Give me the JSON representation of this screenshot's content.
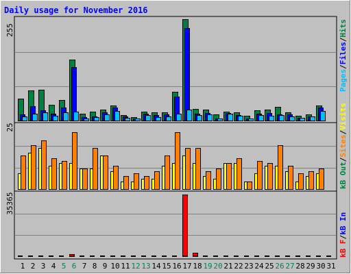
{
  "chart_data": {
    "type": "bar",
    "title": "Daily usage for November 2016",
    "categories": [
      "1",
      "2",
      "3",
      "4",
      "5",
      "6",
      "7",
      "8",
      "9",
      "10",
      "11",
      "12",
      "13",
      "14",
      "15",
      "16",
      "17",
      "18",
      "19",
      "20",
      "21",
      "22",
      "23",
      "24",
      "25",
      "26",
      "27",
      "28",
      "29",
      "30",
      "31"
    ],
    "weekend_days": [
      "5",
      "6",
      "12",
      "13",
      "19",
      "20",
      "26",
      "27"
    ],
    "grid": true,
    "panels": {
      "hits": {
        "y_max_label": "255",
        "ylim": [
          0,
          255
        ],
        "series": [
          {
            "name": "Hits",
            "color": "#008040",
            "values": [
              55,
              75,
              77,
              40,
              52,
              153,
              17,
              22,
              28,
              38,
              13,
              8,
              22,
              20,
              20,
              72,
              255,
              30,
              28,
              15,
              22,
              20,
              12,
              25,
              27,
              35,
              20,
              12,
              15,
              38,
              0
            ]
          },
          {
            "name": "Files",
            "color": "#0000ff",
            "values": [
              16,
              37,
              26,
              18,
              33,
              135,
              8,
              11,
              20,
              32,
              10,
              6,
              17,
              14,
              15,
              60,
              233,
              17,
              19,
              6,
              19,
              14,
              6,
              17,
              19,
              15,
              15,
              7,
              11,
              33,
              0
            ]
          },
          {
            "name": "Pages",
            "color": "#00c0ff",
            "values": [
              10,
              18,
              21,
              12,
              20,
              23,
              6,
              9,
              15,
              24,
              7,
              5,
              13,
              9,
              11,
              18,
              27,
              13,
              15,
              5,
              17,
              12,
              5,
              14,
              12,
              14,
              10,
              7,
              11,
              24,
              0
            ]
          }
        ]
      },
      "sites": {
        "y_max_label": "25",
        "ylim": [
          0,
          25
        ],
        "series": [
          {
            "name": "Visits",
            "color": "#ffff00",
            "values": [
              6,
              14,
              16,
              9,
              10,
              10,
              8,
              8,
              13,
              7,
              3,
              3,
              4,
              4,
              9,
              10,
              13,
              10,
              5,
              4,
              10,
              10,
              3,
              6,
              9,
              9,
              7,
              3,
              5,
              6,
              0
            ]
          },
          {
            "name": "Sites",
            "color": "#ff8000",
            "values": [
              13,
              17,
              19,
              12,
              11,
              22,
              8,
              16,
              13,
              9,
              5,
              6,
              5,
              7,
              13,
              22,
              16,
              16,
              7,
              8,
              10,
              12,
              3,
              11,
              10,
              17,
              9,
              6,
              7,
              8,
              0
            ]
          }
        ]
      },
      "kbytes": {
        "y_max_label": "35365",
        "ylim": [
          0,
          35365
        ],
        "series": [
          {
            "name": "kB F",
            "color": "#ff0000",
            "values": [
              0,
              0,
              0,
              0,
              0,
              1300,
              0,
              0,
              0,
              0,
              0,
              0,
              0,
              0,
              0,
              0,
              35365,
              1800,
              0,
              0,
              0,
              0,
              0,
              0,
              0,
              0,
              0,
              0,
              0,
              0,
              0
            ]
          },
          {
            "name": "kB In",
            "color": "#0000ff",
            "values": [
              0,
              0,
              0,
              0,
              0,
              0,
              0,
              0,
              0,
              0,
              0,
              0,
              0,
              0,
              0,
              0,
              0,
              0,
              0,
              0,
              0,
              0,
              0,
              0,
              0,
              0,
              0,
              0,
              0,
              0,
              0
            ]
          },
          {
            "name": "kB Out",
            "color": "#008040",
            "values": [
              0,
              0,
              0,
              0,
              0,
              0,
              0,
              0,
              0,
              0,
              0,
              0,
              0,
              0,
              0,
              0,
              0,
              0,
              0,
              0,
              0,
              0,
              0,
              0,
              0,
              0,
              0,
              0,
              0,
              0,
              0
            ]
          }
        ]
      }
    }
  },
  "legend_separator": "/",
  "colors": {
    "frame_bg": "#c0c0c0",
    "title_color": "#0000ff",
    "weekday_label_color": "#000000",
    "weekend_label_color": "#00805c"
  }
}
